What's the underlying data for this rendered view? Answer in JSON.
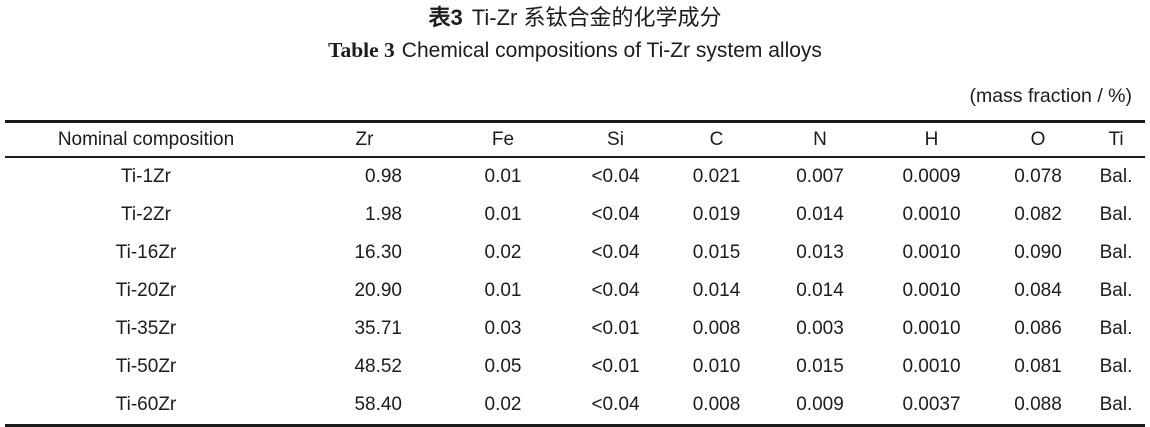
{
  "page": {
    "background": "#ffffff",
    "text_color": "#1c1c1c",
    "rule_color": "#1a1a1a"
  },
  "title": {
    "cn_label": "表3",
    "cn_text": "Ti-Zr 系钛合金的化学成分",
    "en_label": "Table 3",
    "en_text": "Chemical compositions of Ti-Zr system alloys"
  },
  "unit_note": "(mass fraction / %)",
  "table": {
    "columns": [
      "Nominal composition",
      "Zr",
      "Fe",
      "Si",
      "C",
      "N",
      "H",
      "O",
      "Ti"
    ],
    "rows": [
      [
        "Ti-1Zr",
        "0.98",
        "0.01",
        "<0.04",
        "0.021",
        "0.007",
        "0.0009",
        "0.078",
        "Bal."
      ],
      [
        "Ti-2Zr",
        "1.98",
        "0.01",
        "<0.04",
        "0.019",
        "0.014",
        "0.0010",
        "0.082",
        "Bal."
      ],
      [
        "Ti-16Zr",
        "16.30",
        "0.02",
        "<0.04",
        "0.015",
        "0.013",
        "0.0010",
        "0.090",
        "Bal."
      ],
      [
        "Ti-20Zr",
        "20.90",
        "0.01",
        "<0.04",
        "0.014",
        "0.014",
        "0.0010",
        "0.084",
        "Bal."
      ],
      [
        "Ti-35Zr",
        "35.71",
        "0.03",
        "<0.01",
        "0.008",
        "0.003",
        "0.0010",
        "0.086",
        "Bal."
      ],
      [
        "Ti-50Zr",
        "48.52",
        "0.05",
        "<0.01",
        "0.010",
        "0.015",
        "0.0010",
        "0.081",
        "Bal."
      ],
      [
        "Ti-60Zr",
        "58.40",
        "0.02",
        "<0.04",
        "0.008",
        "0.009",
        "0.0037",
        "0.088",
        "Bal."
      ]
    ]
  }
}
